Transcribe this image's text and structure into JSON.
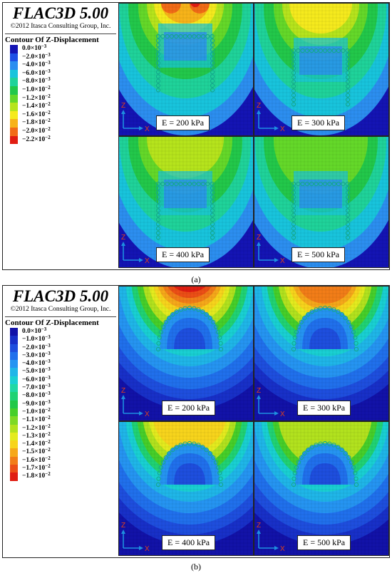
{
  "software": {
    "name": "FLAC3D 5.00",
    "copyright": "©2012 Itasca Consulting Group, Inc."
  },
  "contour_title": "Contour Of Z-Displacement",
  "axis_labels": {
    "z": "Z",
    "x": "X"
  },
  "figure_a": {
    "caption": "(a)",
    "legend": [
      {
        "label": "0.0×10",
        "exp": "−3",
        "color": "#1414b4"
      },
      {
        "label": "−2.0×10",
        "exp": "−3",
        "color": "#1e50e6"
      },
      {
        "label": "−4.0×10",
        "exp": "−3",
        "color": "#2c8ef0"
      },
      {
        "label": "−6.0×10",
        "exp": "−3",
        "color": "#18c4dc"
      },
      {
        "label": "−8.0×10",
        "exp": "−3",
        "color": "#1fd39a"
      },
      {
        "label": "−1.0×10",
        "exp": "−2",
        "color": "#22c84a"
      },
      {
        "label": "−1.2×10",
        "exp": "−2",
        "color": "#64d829"
      },
      {
        "label": "−1.4×10",
        "exp": "−2",
        "color": "#b6e41c"
      },
      {
        "label": "−1.6×10",
        "exp": "−2",
        "color": "#f5ea1d"
      },
      {
        "label": "−1.8×10",
        "exp": "−2",
        "color": "#f7b319"
      },
      {
        "label": "−2.0×10",
        "exp": "−2",
        "color": "#f26c17"
      },
      {
        "label": "−2.2×10",
        "exp": "−2",
        "color": "#e11d12"
      }
    ],
    "panels": [
      {
        "label": "E = 200 kPa"
      },
      {
        "label": "E = 300 kPa"
      },
      {
        "label": "E = 400 kPa"
      },
      {
        "label": "E = 500 kPa"
      }
    ]
  },
  "figure_b": {
    "caption": "(b)",
    "legend": [
      {
        "label": "0.0×10",
        "exp": "−3",
        "color": "#1212a8"
      },
      {
        "label": "−1.0×10",
        "exp": "−3",
        "color": "#1830c8"
      },
      {
        "label": "−2.0×10",
        "exp": "−3",
        "color": "#1e4ede"
      },
      {
        "label": "−3.0×10",
        "exp": "−3",
        "color": "#2070ec"
      },
      {
        "label": "−4.0×10",
        "exp": "−3",
        "color": "#2594f2"
      },
      {
        "label": "−5.0×10",
        "exp": "−3",
        "color": "#1fb6e8"
      },
      {
        "label": "−6.0×10",
        "exp": "−3",
        "color": "#19d0d2"
      },
      {
        "label": "−7.0×10",
        "exp": "−3",
        "color": "#1fd8a4"
      },
      {
        "label": "−8.0×10",
        "exp": "−3",
        "color": "#20d274"
      },
      {
        "label": "−9.0×10",
        "exp": "−3",
        "color": "#22c848"
      },
      {
        "label": "−1.0×10",
        "exp": "−2",
        "color": "#46cf2a"
      },
      {
        "label": "−1.1×10",
        "exp": "−2",
        "color": "#7ed925"
      },
      {
        "label": "−1.2×10",
        "exp": "−2",
        "color": "#b2e21e"
      },
      {
        "label": "−1.3×10",
        "exp": "−2",
        "color": "#e4eb1e"
      },
      {
        "label": "−1.4×10",
        "exp": "−2",
        "color": "#f7d41c"
      },
      {
        "label": "−1.5×10",
        "exp": "−2",
        "color": "#f6a81a"
      },
      {
        "label": "−1.6×10",
        "exp": "−2",
        "color": "#f27d18"
      },
      {
        "label": "−1.7×10",
        "exp": "−2",
        "color": "#ec4f16"
      },
      {
        "label": "−1.8×10",
        "exp": "−2",
        "color": "#e01e12"
      }
    ],
    "panels": [
      {
        "label": "E = 200 kPa"
      },
      {
        "label": "E = 300 kPa"
      },
      {
        "label": "E = 400 kPa"
      },
      {
        "label": "E = 500 kPa"
      }
    ]
  }
}
